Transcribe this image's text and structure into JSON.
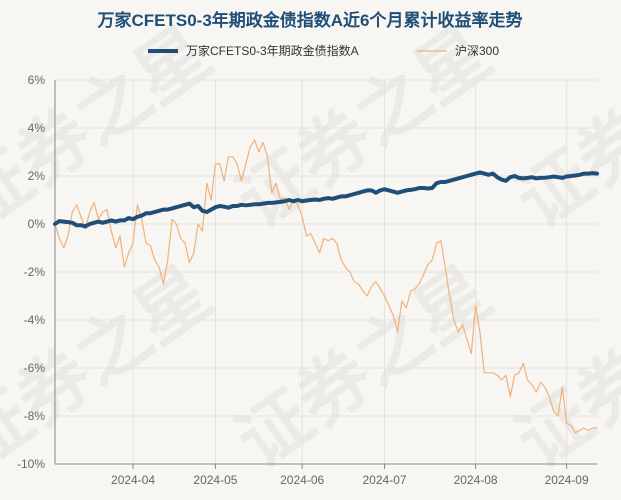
{
  "chart_data": {
    "type": "line",
    "title": "万家CFETS0-3年期政金债指数A近6个月累计收益率走势",
    "xlabel": "",
    "ylabel": "",
    "ylim": [
      -10,
      6
    ],
    "y_ticks": [
      6,
      4,
      2,
      0,
      -2,
      -4,
      -6,
      -8,
      -10
    ],
    "y_tick_labels": [
      "6%",
      "4%",
      "2%",
      "0%",
      "-2%",
      "-4%",
      "-6%",
      "-8%",
      "-10%"
    ],
    "x_range": [
      0,
      125
    ],
    "x_ticks": [
      {
        "label": "2024-04",
        "index": 18
      },
      {
        "label": "2024-05",
        "index": 37
      },
      {
        "label": "2024-06",
        "index": 57
      },
      {
        "label": "2024-07",
        "index": 76
      },
      {
        "label": "2024-08",
        "index": 97
      },
      {
        "label": "2024-09",
        "index": 118
      }
    ],
    "grid": true,
    "legend_position": "top",
    "watermark": "证券之星",
    "series": [
      {
        "name": "万家CFETS0-3年期政金债指数A",
        "color": "#1f4e79",
        "values": [
          0.0,
          0.12,
          0.1,
          0.08,
          0.05,
          -0.05,
          -0.05,
          -0.1,
          0.0,
          0.05,
          0.1,
          0.05,
          0.1,
          0.15,
          0.1,
          0.15,
          0.15,
          0.25,
          0.2,
          0.3,
          0.35,
          0.45,
          0.45,
          0.5,
          0.55,
          0.6,
          0.6,
          0.65,
          0.7,
          0.75,
          0.8,
          0.85,
          0.7,
          0.75,
          0.55,
          0.5,
          0.6,
          0.7,
          0.75,
          0.72,
          0.68,
          0.75,
          0.75,
          0.8,
          0.78,
          0.8,
          0.82,
          0.82,
          0.85,
          0.88,
          0.88,
          0.9,
          0.92,
          0.95,
          1.0,
          0.95,
          1.0,
          0.95,
          0.98,
          1.0,
          1.02,
          1.0,
          1.05,
          1.08,
          1.05,
          1.1,
          1.15,
          1.15,
          1.2,
          1.25,
          1.3,
          1.35,
          1.4,
          1.4,
          1.3,
          1.4,
          1.45,
          1.4,
          1.35,
          1.3,
          1.35,
          1.4,
          1.42,
          1.45,
          1.5,
          1.5,
          1.48,
          1.5,
          1.7,
          1.75,
          1.75,
          1.8,
          1.85,
          1.9,
          1.95,
          2.0,
          2.05,
          2.1,
          2.15,
          2.1,
          2.05,
          2.1,
          1.95,
          1.85,
          1.8,
          1.95,
          2.0,
          1.92,
          1.9,
          1.92,
          1.95,
          1.9,
          1.92,
          1.93,
          1.95,
          1.98,
          1.95,
          1.92,
          1.98,
          2.0,
          2.02,
          2.05,
          2.1,
          2.1,
          2.12,
          2.1
        ]
      },
      {
        "name": "沪深300",
        "color": "#f0b27a",
        "values": [
          0.0,
          -0.6,
          -1.0,
          -0.5,
          0.5,
          0.8,
          0.3,
          -0.2,
          0.5,
          0.9,
          0.2,
          0.5,
          0.6,
          -0.3,
          -1.0,
          -0.5,
          -1.8,
          -1.2,
          -0.8,
          0.8,
          0.2,
          -0.8,
          -0.9,
          -1.5,
          -1.8,
          -2.5,
          -1.5,
          0.2,
          0.0,
          -0.6,
          -0.8,
          -1.6,
          -1.2,
          0.0,
          -0.3,
          1.7,
          1.0,
          2.5,
          2.5,
          1.8,
          2.8,
          2.8,
          2.5,
          1.8,
          2.5,
          3.2,
          3.5,
          3.0,
          3.4,
          2.8,
          1.3,
          1.7,
          1.0,
          1.1,
          0.6,
          1.0,
          0.8,
          0.3,
          -0.5,
          -0.4,
          -0.8,
          -1.2,
          -0.6,
          -0.7,
          -0.6,
          -0.8,
          -1.5,
          -1.8,
          -2.0,
          -2.4,
          -2.5,
          -2.8,
          -3.0,
          -2.6,
          -2.4,
          -2.7,
          -3.0,
          -3.4,
          -3.8,
          -4.5,
          -3.2,
          -3.5,
          -2.8,
          -2.7,
          -2.5,
          -2.1,
          -1.7,
          -1.5,
          -0.8,
          -0.7,
          -1.8,
          -3.0,
          -4.0,
          -4.5,
          -4.2,
          -4.8,
          -5.4,
          -3.4,
          -4.5,
          -6.2,
          -6.2,
          -6.2,
          -6.3,
          -6.5,
          -6.3,
          -7.2,
          -6.3,
          -6.2,
          -5.8,
          -6.5,
          -6.7,
          -7.0,
          -6.6,
          -6.8,
          -7.2,
          -7.8,
          -8.0,
          -6.8,
          -8.3,
          -8.4,
          -8.7,
          -8.6,
          -8.5,
          -8.6,
          -8.5,
          -8.5
        ]
      }
    ]
  }
}
